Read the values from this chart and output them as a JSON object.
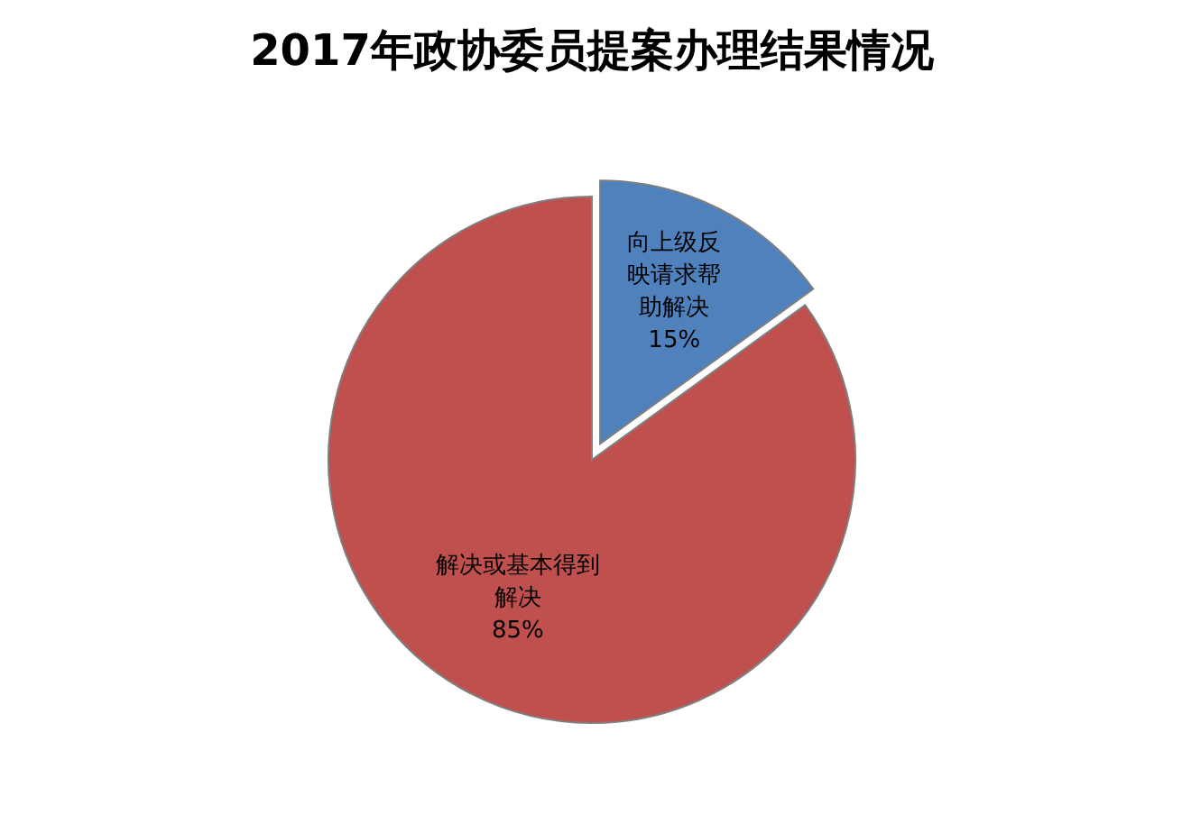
{
  "chart_data": {
    "type": "pie",
    "title": "2017年政协委员提案办理结果情况",
    "categories": [
      "向上级反映请求帮助解决",
      "解决或基本得到解决"
    ],
    "values": [
      15,
      85
    ],
    "colors": [
      "#4f81bd",
      "#c0504d"
    ],
    "value_labels": [
      "15%",
      "85%"
    ]
  }
}
